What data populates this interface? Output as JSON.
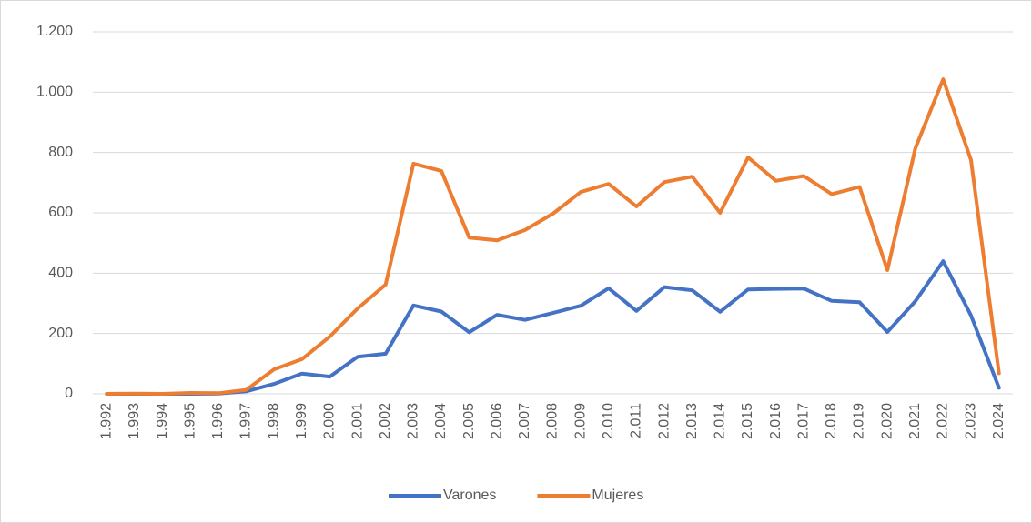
{
  "chart_data": {
    "type": "line",
    "categories": [
      "1.992",
      "1.993",
      "1.994",
      "1.995",
      "1.996",
      "1.997",
      "1.998",
      "1.999",
      "2.000",
      "2.001",
      "2.002",
      "2.003",
      "2.004",
      "2.005",
      "2.006",
      "2.007",
      "2.008",
      "2.009",
      "2.010",
      "2.011",
      "2.012",
      "2.013",
      "2.014",
      "2.015",
      "2.016",
      "2.017",
      "2.018",
      "2.019",
      "2.020",
      "2.021",
      "2.022",
      "2.023",
      "2.024"
    ],
    "series": [
      {
        "name": "Varones",
        "color": "#4472c4",
        "values": [
          0,
          0,
          0,
          0,
          1,
          8,
          33,
          67,
          57,
          123,
          133,
          293,
          273,
          204,
          262,
          245,
          268,
          292,
          350,
          275,
          354,
          343,
          272,
          346,
          348,
          349,
          308,
          304,
          205,
          307,
          440,
          260,
          20
        ]
      },
      {
        "name": "Mujeres",
        "color": "#ed7d31",
        "values": [
          0,
          1,
          0,
          3,
          2,
          13,
          81,
          115,
          190,
          283,
          362,
          763,
          739,
          518,
          509,
          543,
          597,
          669,
          696,
          621,
          702,
          720,
          600,
          784,
          706,
          722,
          662,
          686,
          410,
          814,
          1043,
          775,
          68
        ]
      }
    ],
    "ylim": [
      0,
      1200
    ],
    "yticks": [
      0,
      200,
      400,
      600,
      800,
      {
        "value": 1000,
        "label": "1.000"
      },
      {
        "value": 1200,
        "label": "1.200"
      }
    ],
    "grid": true,
    "legend": "bottom"
  }
}
